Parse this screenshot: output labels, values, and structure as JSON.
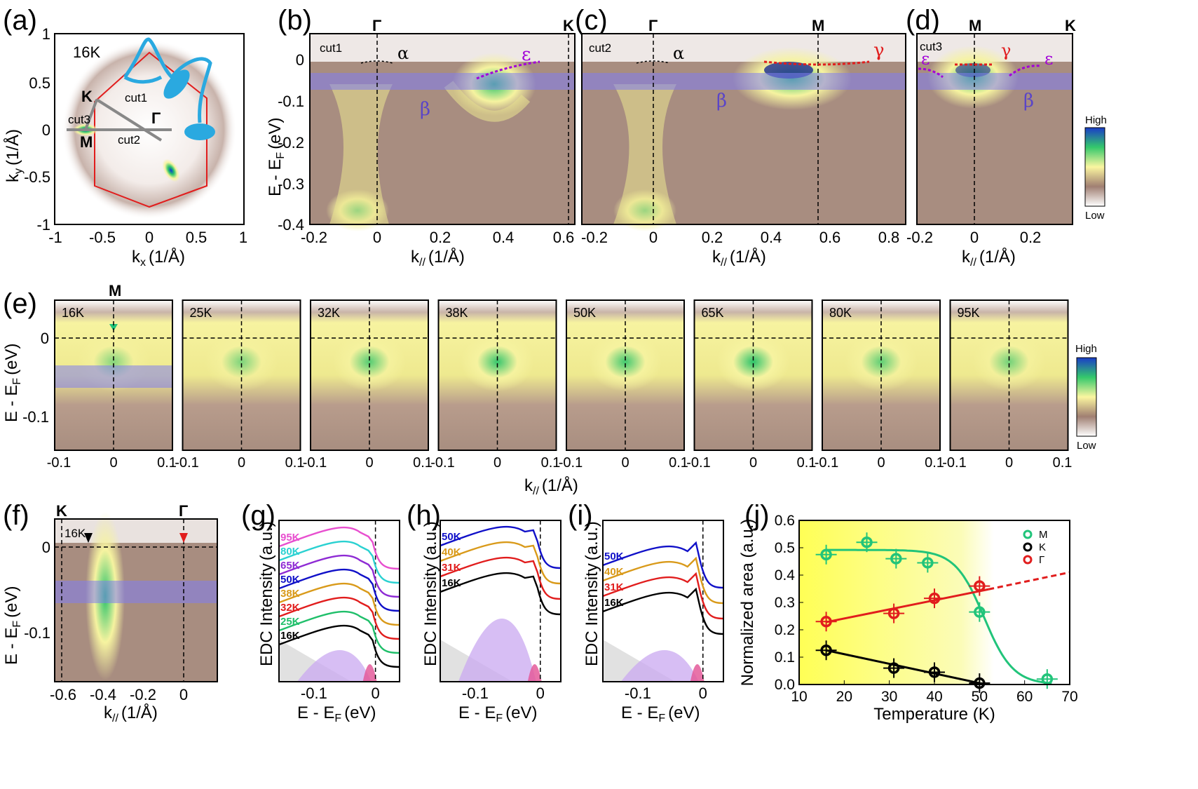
{
  "panel_labels": {
    "a": "(a)",
    "b": "(b)",
    "c": "(c)",
    "d": "(d)",
    "e": "(e)",
    "f": "(f)",
    "g": "(g)",
    "h": "(h)",
    "i": "(i)",
    "j": "(j)"
  },
  "a": {
    "temp": "16K",
    "ylabel": "k",
    "ylabel_sub": "y",
    "xlabel": "k",
    "xlabel_sub": "x",
    "unit": "(1/Å)",
    "yticks": [
      "1",
      "0.5",
      "0",
      "-0.5",
      "-1"
    ],
    "xticks": [
      "-1",
      "-0.5",
      "0",
      "0.5",
      "1"
    ],
    "points": {
      "K": "K",
      "M": "M",
      "G": "Γ"
    },
    "cuts": [
      "cut1",
      "cut2",
      "cut3"
    ]
  },
  "b": {
    "cut": "cut1",
    "top": {
      "G": "Γ",
      "K": "K"
    },
    "xticks": [
      "-0.2",
      "0",
      "0.2",
      "0.4",
      "0.6"
    ],
    "yticks": [
      "0",
      "-0.1",
      "-0.2",
      "-0.3",
      "-0.4"
    ],
    "bands": {
      "alpha": "α",
      "beta": "β",
      "eps": "ε"
    },
    "ylabel": "E - E",
    "ylabel_sub": "F",
    "ylabel_unit": "(eV)"
  },
  "c": {
    "cut": "cut2",
    "top": {
      "G": "Γ",
      "M": "M"
    },
    "xticks": [
      "-0.2",
      "0",
      "0.2",
      "0.4",
      "0.6",
      "0.8"
    ],
    "bands": {
      "alpha": "α",
      "beta": "β",
      "gamma": "γ"
    }
  },
  "d": {
    "cut": "cut3",
    "top": {
      "M": "M",
      "K": "K"
    },
    "xticks": [
      "-0.2",
      "0",
      "0.2"
    ],
    "bands": {
      "eps": "ε",
      "gamma": "γ",
      "beta": "β"
    }
  },
  "kpar": {
    "label": "k",
    "sub": "//",
    "unit": "(1/Å)"
  },
  "colorbar": {
    "high": "High",
    "low": "Low"
  },
  "e": {
    "top": "M",
    "temps": [
      "16K",
      "25K",
      "32K",
      "38K",
      "50K",
      "65K",
      "80K",
      "95K"
    ],
    "xticks": [
      "-0.1",
      "0",
      "0.1"
    ],
    "yticks": [
      "0",
      "-0.1"
    ]
  },
  "f": {
    "top": {
      "K": "K",
      "G": "Γ"
    },
    "temp": "16K",
    "xticks": [
      "-0.6",
      "-0.4",
      "-0.2",
      "0"
    ],
    "yticks": [
      "0",
      "-0.1"
    ]
  },
  "edc": {
    "ylabel": "EDC Intensity",
    "ylabel_unit": "(a.u.)",
    "xlabel": "E - E",
    "xlabel_sub": "F",
    "xlabel_unit": "(eV)",
    "xticks": [
      "-0.1",
      "0"
    ]
  },
  "g": {
    "curves": [
      {
        "t": "95K",
        "color": "#e84fcf"
      },
      {
        "t": "80K",
        "color": "#2ad1d1"
      },
      {
        "t": "65K",
        "color": "#8e2bd4"
      },
      {
        "t": "50K",
        "color": "#1010c8"
      },
      {
        "t": "38K",
        "color": "#d99a1a"
      },
      {
        "t": "32K",
        "color": "#e11d1d"
      },
      {
        "t": "25K",
        "color": "#1fbf6a"
      },
      {
        "t": "16K",
        "color": "#000000"
      }
    ]
  },
  "h": {
    "curves": [
      {
        "t": "50K",
        "color": "#1010c8"
      },
      {
        "t": "40K",
        "color": "#d99a1a"
      },
      {
        "t": "31K",
        "color": "#e11d1d"
      },
      {
        "t": "16K",
        "color": "#000000"
      }
    ]
  },
  "i": {
    "curves": [
      {
        "t": "50K",
        "color": "#1010c8"
      },
      {
        "t": "40K",
        "color": "#d99a1a"
      },
      {
        "t": "31K",
        "color": "#e11d1d"
      },
      {
        "t": "16K",
        "color": "#000000"
      }
    ]
  },
  "chart_data": {
    "type": "scatter",
    "title": "",
    "xlabel": "Temperature (K)",
    "ylabel": "Normalized area (a.u.)",
    "xlim": [
      10,
      70
    ],
    "ylim": [
      0,
      0.6
    ],
    "xticks": [
      "10",
      "20",
      "30",
      "40",
      "50",
      "60",
      "70"
    ],
    "yticks": [
      "0.0",
      "0.1",
      "0.2",
      "0.3",
      "0.4",
      "0.5",
      "0.6"
    ],
    "series": [
      {
        "name": "M",
        "color": "#21c47a",
        "x": [
          16,
          25,
          31.5,
          38.5,
          50,
          65
        ],
        "y": [
          0.475,
          0.52,
          0.46,
          0.445,
          0.265,
          0.02
        ]
      },
      {
        "name": "K",
        "color": "#000000",
        "x": [
          16,
          31,
          40,
          50
        ],
        "y": [
          0.125,
          0.06,
          0.045,
          0.005
        ]
      },
      {
        "name": "Γ",
        "color": "#e11d1d",
        "x": [
          16,
          31,
          40,
          50
        ],
        "y": [
          0.23,
          0.26,
          0.315,
          0.36
        ]
      }
    ]
  }
}
